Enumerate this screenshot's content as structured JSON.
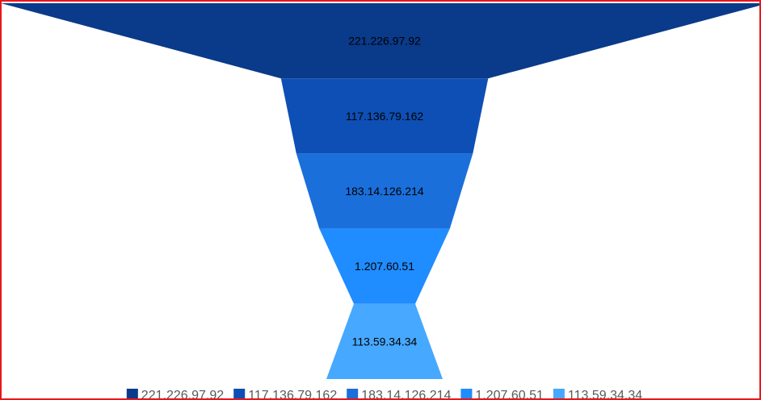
{
  "chart_data": {
    "type": "funnel",
    "title": "",
    "categories": [
      "221.226.97.92",
      "117.136.79.162",
      "183.14.126.214",
      "1.207.60.51",
      "113.59.34.34"
    ],
    "values": [
      100,
      27,
      23,
      17,
      8
    ],
    "colors": [
      "#0a3a8a",
      "#0d4fb5",
      "#1a6fdb",
      "#1f8cff",
      "#46a8ff"
    ],
    "labels_on_segments": true,
    "legend": {
      "position": "bottom-center",
      "entries": [
        "221.226.97.92",
        "117.136.79.162",
        "183.14.126.214",
        "1.207.60.51",
        "113.59.34.34"
      ]
    }
  }
}
